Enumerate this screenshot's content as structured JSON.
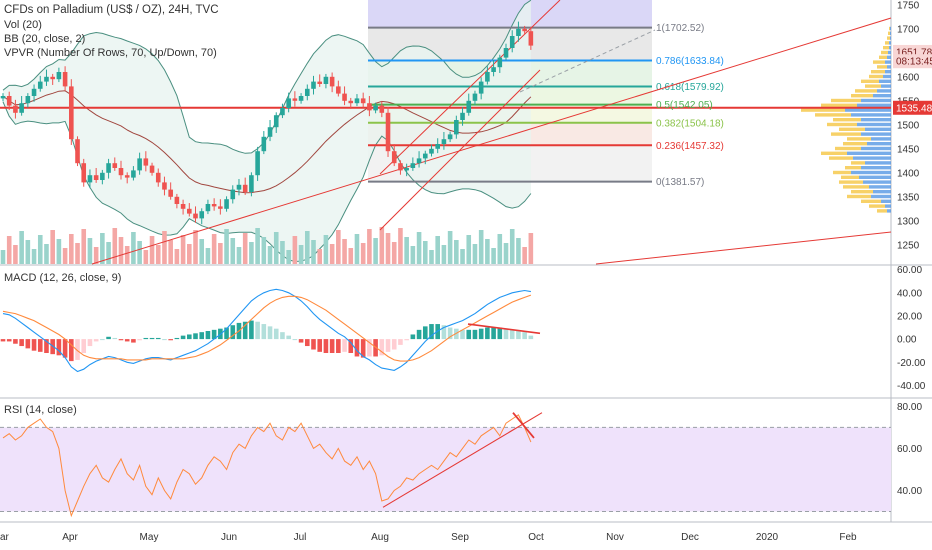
{
  "header": {
    "title": "CFDs on Palladium (US$ / OZ), 24H, TVC",
    "vol_label": "Vol (20)",
    "bb_label": "BB (20, close, 2)",
    "vpvr_label": "VPVR (Number Of Rows, 70, Up/Down, 70)",
    "macd_label": "MACD (12, 26, close, 9)",
    "rsi_label": "RSI (14, close)"
  },
  "colors": {
    "up": "#26a69a",
    "down": "#ef5350",
    "bb": "#4a8f80",
    "bb_fill": "#e8f4f0",
    "macd_line": "#2196f3",
    "signal_line": "#ff8a3d",
    "rsi_line": "#ff8a3d",
    "rsi_band": "#efe2fb",
    "trend": "#e53935"
  },
  "chart_data": [
    {
      "type": "candlestick",
      "name": "price",
      "x_ticks": [
        "ar",
        "Apr",
        "May",
        "Jun",
        "Jul",
        "Aug",
        "Sep",
        "Oct",
        "Nov",
        "Dec",
        "2020",
        "Feb"
      ],
      "y_ticks": [
        1750,
        1700,
        1650,
        1600,
        1550,
        1500,
        1450,
        1400,
        1350,
        1300,
        1250
      ],
      "ylim": [
        1210,
        1760
      ],
      "close": [
        1560,
        1540,
        1525,
        1545,
        1560,
        1575,
        1590,
        1600,
        1595,
        1610,
        1580,
        1470,
        1420,
        1380,
        1395,
        1385,
        1400,
        1420,
        1410,
        1395,
        1390,
        1405,
        1430,
        1415,
        1400,
        1380,
        1365,
        1350,
        1335,
        1325,
        1315,
        1305,
        1320,
        1335,
        1330,
        1325,
        1345,
        1365,
        1375,
        1360,
        1395,
        1445,
        1475,
        1495,
        1520,
        1535,
        1555,
        1550,
        1560,
        1575,
        1590,
        1585,
        1600,
        1580,
        1565,
        1550,
        1545,
        1555,
        1545,
        1530,
        1540,
        1525,
        1445,
        1420,
        1405,
        1410,
        1420,
        1430,
        1440,
        1450,
        1460,
        1470,
        1480,
        1510,
        1525,
        1550,
        1565,
        1590,
        1610,
        1620,
        1640,
        1660,
        1685,
        1700,
        1695,
        1665
      ],
      "current_price_label": "1651.78",
      "countdown_label": "08:13:45",
      "poc_label": "1535.48",
      "fib_levels": [
        {
          "ratio": "1",
          "price": 1702.52,
          "label": "1(1702.52)",
          "color": "#787b86"
        },
        {
          "ratio": "0.786",
          "price": 1633.84,
          "label": "0.786(1633.84)",
          "color": "#2196f3"
        },
        {
          "ratio": "0.618",
          "price": 1579.92,
          "label": "0.618(1579.92)",
          "color": "#26a69a"
        },
        {
          "ratio": "0.5",
          "price": 1542.05,
          "label": "0.5(1542.05)",
          "color": "#4caf50"
        },
        {
          "ratio": "0.382",
          "price": 1504.18,
          "label": "0.382(1504.18)",
          "color": "#8bc34a"
        },
        {
          "ratio": "0.236",
          "price": 1457.32,
          "label": "0.236(1457.32)",
          "color": "#e53935"
        },
        {
          "ratio": "0",
          "price": 1381.57,
          "label": "0(1381.57)",
          "color": "#787b86"
        }
      ],
      "horizontal_line": 1535.48
    },
    {
      "type": "histogram+line",
      "name": "MACD",
      "y_ticks": [
        "60.00",
        "40.00",
        "20.00",
        "0.00",
        "-20.00",
        "-40.00"
      ],
      "ylim": [
        -50,
        64
      ],
      "macd": [
        22,
        21,
        18,
        14,
        10,
        6,
        2,
        -2,
        -6,
        -10,
        -16,
        -24,
        -28,
        -26,
        -22,
        -19,
        -17,
        -15,
        -16,
        -18,
        -20,
        -21,
        -19,
        -17,
        -16,
        -16,
        -17,
        -18,
        -16,
        -14,
        -12,
        -10,
        -7,
        -4,
        0,
        4,
        9,
        15,
        21,
        27,
        33,
        37,
        40,
        42,
        43,
        42,
        40,
        37,
        33,
        28,
        22,
        17,
        13,
        9,
        5,
        2,
        -3,
        -10,
        -15,
        -18,
        -22,
        -25,
        -26,
        -27,
        -24,
        -20,
        -14,
        -8,
        -2,
        3,
        7,
        10,
        12,
        14,
        16,
        19,
        22,
        26,
        30,
        33,
        36,
        38,
        40,
        41,
        42,
        41
      ],
      "signal": [
        24,
        23,
        22,
        20,
        18,
        16,
        13,
        10,
        7,
        4,
        0,
        -5,
        -10,
        -14,
        -16,
        -17,
        -17,
        -17,
        -17,
        -17,
        -18,
        -18,
        -18,
        -18,
        -17,
        -17,
        -17,
        -17,
        -17,
        -17,
        -16,
        -15,
        -13,
        -11,
        -8,
        -5,
        -1,
        3,
        7,
        12,
        17,
        22,
        27,
        31,
        34,
        36,
        37,
        37,
        36,
        34,
        31,
        28,
        25,
        21,
        17,
        13,
        9,
        5,
        1,
        -3,
        -7,
        -11,
        -15,
        -18,
        -19,
        -19,
        -18,
        -16,
        -13,
        -10,
        -6,
        -2,
        2,
        5,
        8,
        11,
        14,
        17,
        20,
        23,
        26,
        29,
        32,
        34,
        36,
        38
      ]
    },
    {
      "type": "line",
      "name": "RSI",
      "y_ticks": [
        "80.00",
        "60.00",
        "40.00"
      ],
      "ylim": [
        25,
        84
      ],
      "band": [
        30,
        70
      ],
      "values": [
        65,
        67,
        64,
        66,
        70,
        72,
        74,
        70,
        68,
        60,
        40,
        28,
        35,
        42,
        48,
        52,
        46,
        44,
        50,
        55,
        48,
        45,
        52,
        42,
        38,
        46,
        40,
        36,
        44,
        50,
        48,
        43,
        46,
        52,
        56,
        54,
        50,
        58,
        62,
        60,
        66,
        70,
        68,
        72,
        66,
        64,
        70,
        68,
        72,
        66,
        60,
        62,
        58,
        55,
        60,
        54,
        52,
        56,
        50,
        54,
        48,
        35,
        36,
        40,
        42,
        46,
        45,
        48,
        50,
        52,
        50,
        54,
        58,
        56,
        60,
        64,
        62,
        66,
        68,
        70,
        66,
        72,
        74,
        76,
        70,
        63
      ]
    }
  ]
}
